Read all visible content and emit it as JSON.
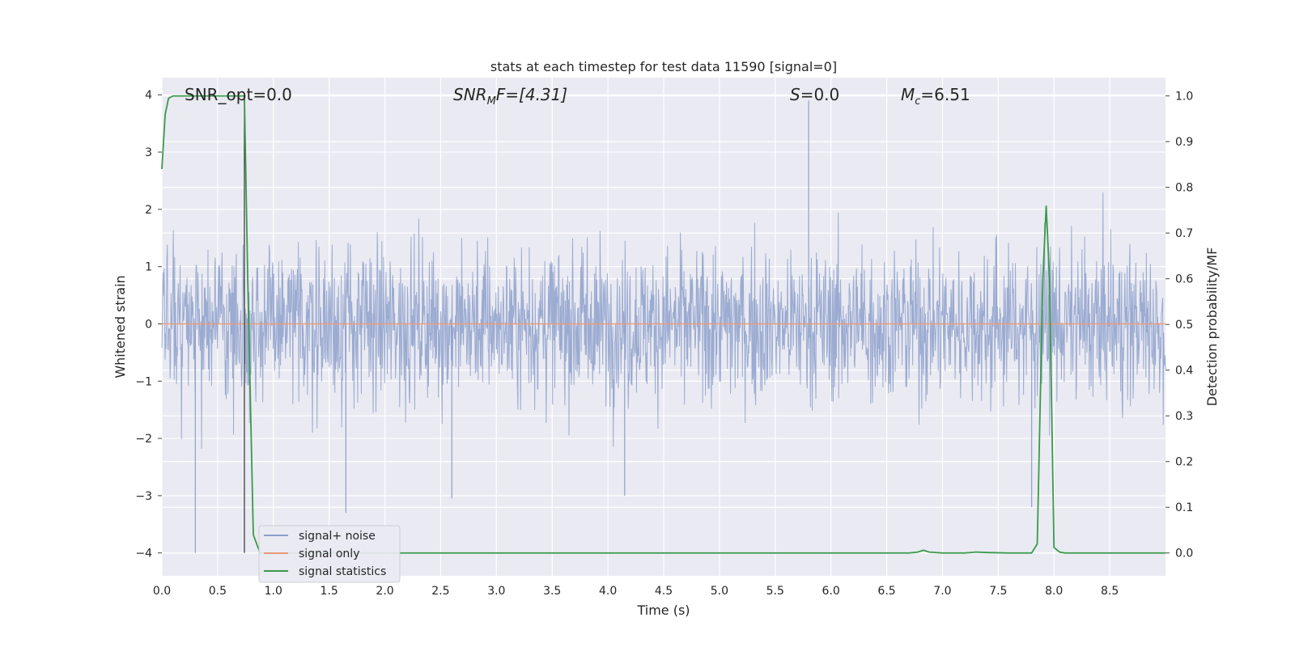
{
  "chart_data": {
    "type": "line",
    "title": "stats at each timestep for test data 11590 [signal=0]",
    "xlabel": "Time (s)",
    "ylabel": "Whitened strain",
    "ylabel_right": "Detection probability/MF",
    "xlim": [
      0.0,
      9.0
    ],
    "ylim": [
      -4.4,
      4.3
    ],
    "ylim_right": [
      -0.05,
      1.04
    ],
    "x_ticks": [
      "0.0",
      "0.5",
      "1.0",
      "1.5",
      "2.0",
      "2.5",
      "3.0",
      "3.5",
      "4.0",
      "4.5",
      "5.0",
      "5.5",
      "6.0",
      "6.5",
      "7.0",
      "7.5",
      "8.0",
      "8.5"
    ],
    "y_ticks": [
      "4",
      "3",
      "2",
      "1",
      "0",
      "−1",
      "−2",
      "−3",
      "−4"
    ],
    "y_ticks_right": [
      "1.0",
      "0.9",
      "0.8",
      "0.7",
      "0.6",
      "0.5",
      "0.4",
      "0.3",
      "0.2",
      "0.1",
      "0.0"
    ],
    "grid": true,
    "legend_position": "lower-left",
    "annotations": {
      "snr_opt": "SNR_opt=0.0",
      "snr_mf_prefix": "SNR",
      "snr_mf_sub": "M",
      "snr_mf_suffix": "F=[4.31]",
      "s_italic": "S",
      "s_value": "=0.0",
      "mc_italic": "M",
      "mc_sub": "c",
      "mc_value": "=6.51"
    },
    "vertical_marker_x": 0.74,
    "series": [
      {
        "name": "signal+ noise",
        "color": "#8da0cb",
        "description_values": "whitened noise strain, approx. within [-2.5, 2.5], max 3.9 at t~5.8, min -4.0 at t~0.3"
      },
      {
        "name": "signal only",
        "color": "#e89b7a",
        "x": [
          0.0,
          9.0
        ],
        "y": [
          0.0,
          0.0
        ]
      },
      {
        "name": "signal statistics",
        "color": "#3a9a4a",
        "axis": "right",
        "x": [
          0.0,
          0.03,
          0.06,
          0.1,
          0.2,
          0.4,
          0.6,
          0.72,
          0.74,
          0.77,
          0.82,
          0.88,
          1.0,
          2.0,
          3.0,
          4.0,
          5.0,
          6.0,
          6.7,
          6.78,
          6.83,
          6.88,
          7.0,
          7.2,
          7.3,
          7.4,
          7.6,
          7.8,
          7.85,
          7.9,
          7.93,
          7.96,
          8.0,
          8.05,
          8.1,
          8.5,
          9.0
        ],
        "y": [
          0.84,
          0.96,
          0.995,
          1.0,
          1.0,
          1.0,
          1.0,
          1.0,
          1.0,
          0.6,
          0.04,
          0.0,
          0.0,
          0.0,
          0.0,
          0.0,
          0.0,
          0.0,
          0.0,
          0.002,
          0.006,
          0.002,
          0.0,
          0.0,
          0.002,
          0.001,
          0.0,
          0.0,
          0.02,
          0.6,
          0.76,
          0.6,
          0.012,
          0.002,
          0.0,
          0.0,
          0.0
        ]
      }
    ]
  }
}
